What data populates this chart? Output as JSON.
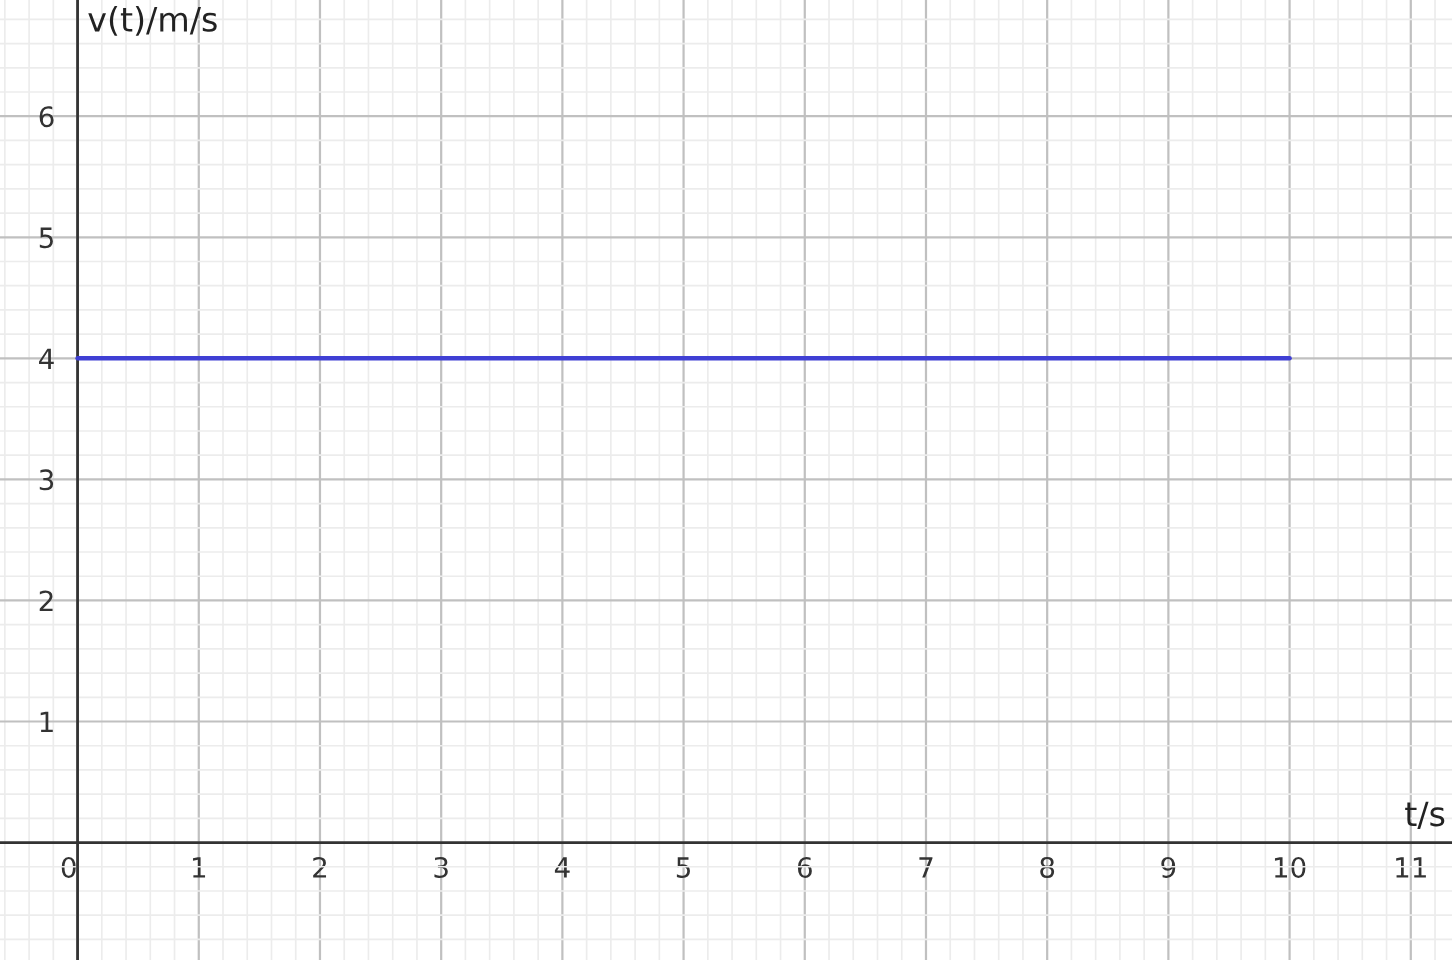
{
  "chart_data": {
    "type": "line",
    "xlabel": "t/s",
    "ylabel": "v(t)/m/s",
    "xlim": [
      -0.64,
      11.34
    ],
    "ylim": [
      -0.97,
      6.96
    ],
    "xticks": [
      0,
      1,
      2,
      3,
      4,
      5,
      6,
      7,
      8,
      9,
      10,
      11
    ],
    "yticks": [
      1,
      2,
      3,
      4,
      5,
      6
    ],
    "grid": true,
    "marker": "none",
    "line_style": "solid",
    "series": [
      {
        "x": [
          0,
          10
        ],
        "values": [
          4,
          4
        ],
        "color": "#3f3fd4"
      }
    ]
  }
}
